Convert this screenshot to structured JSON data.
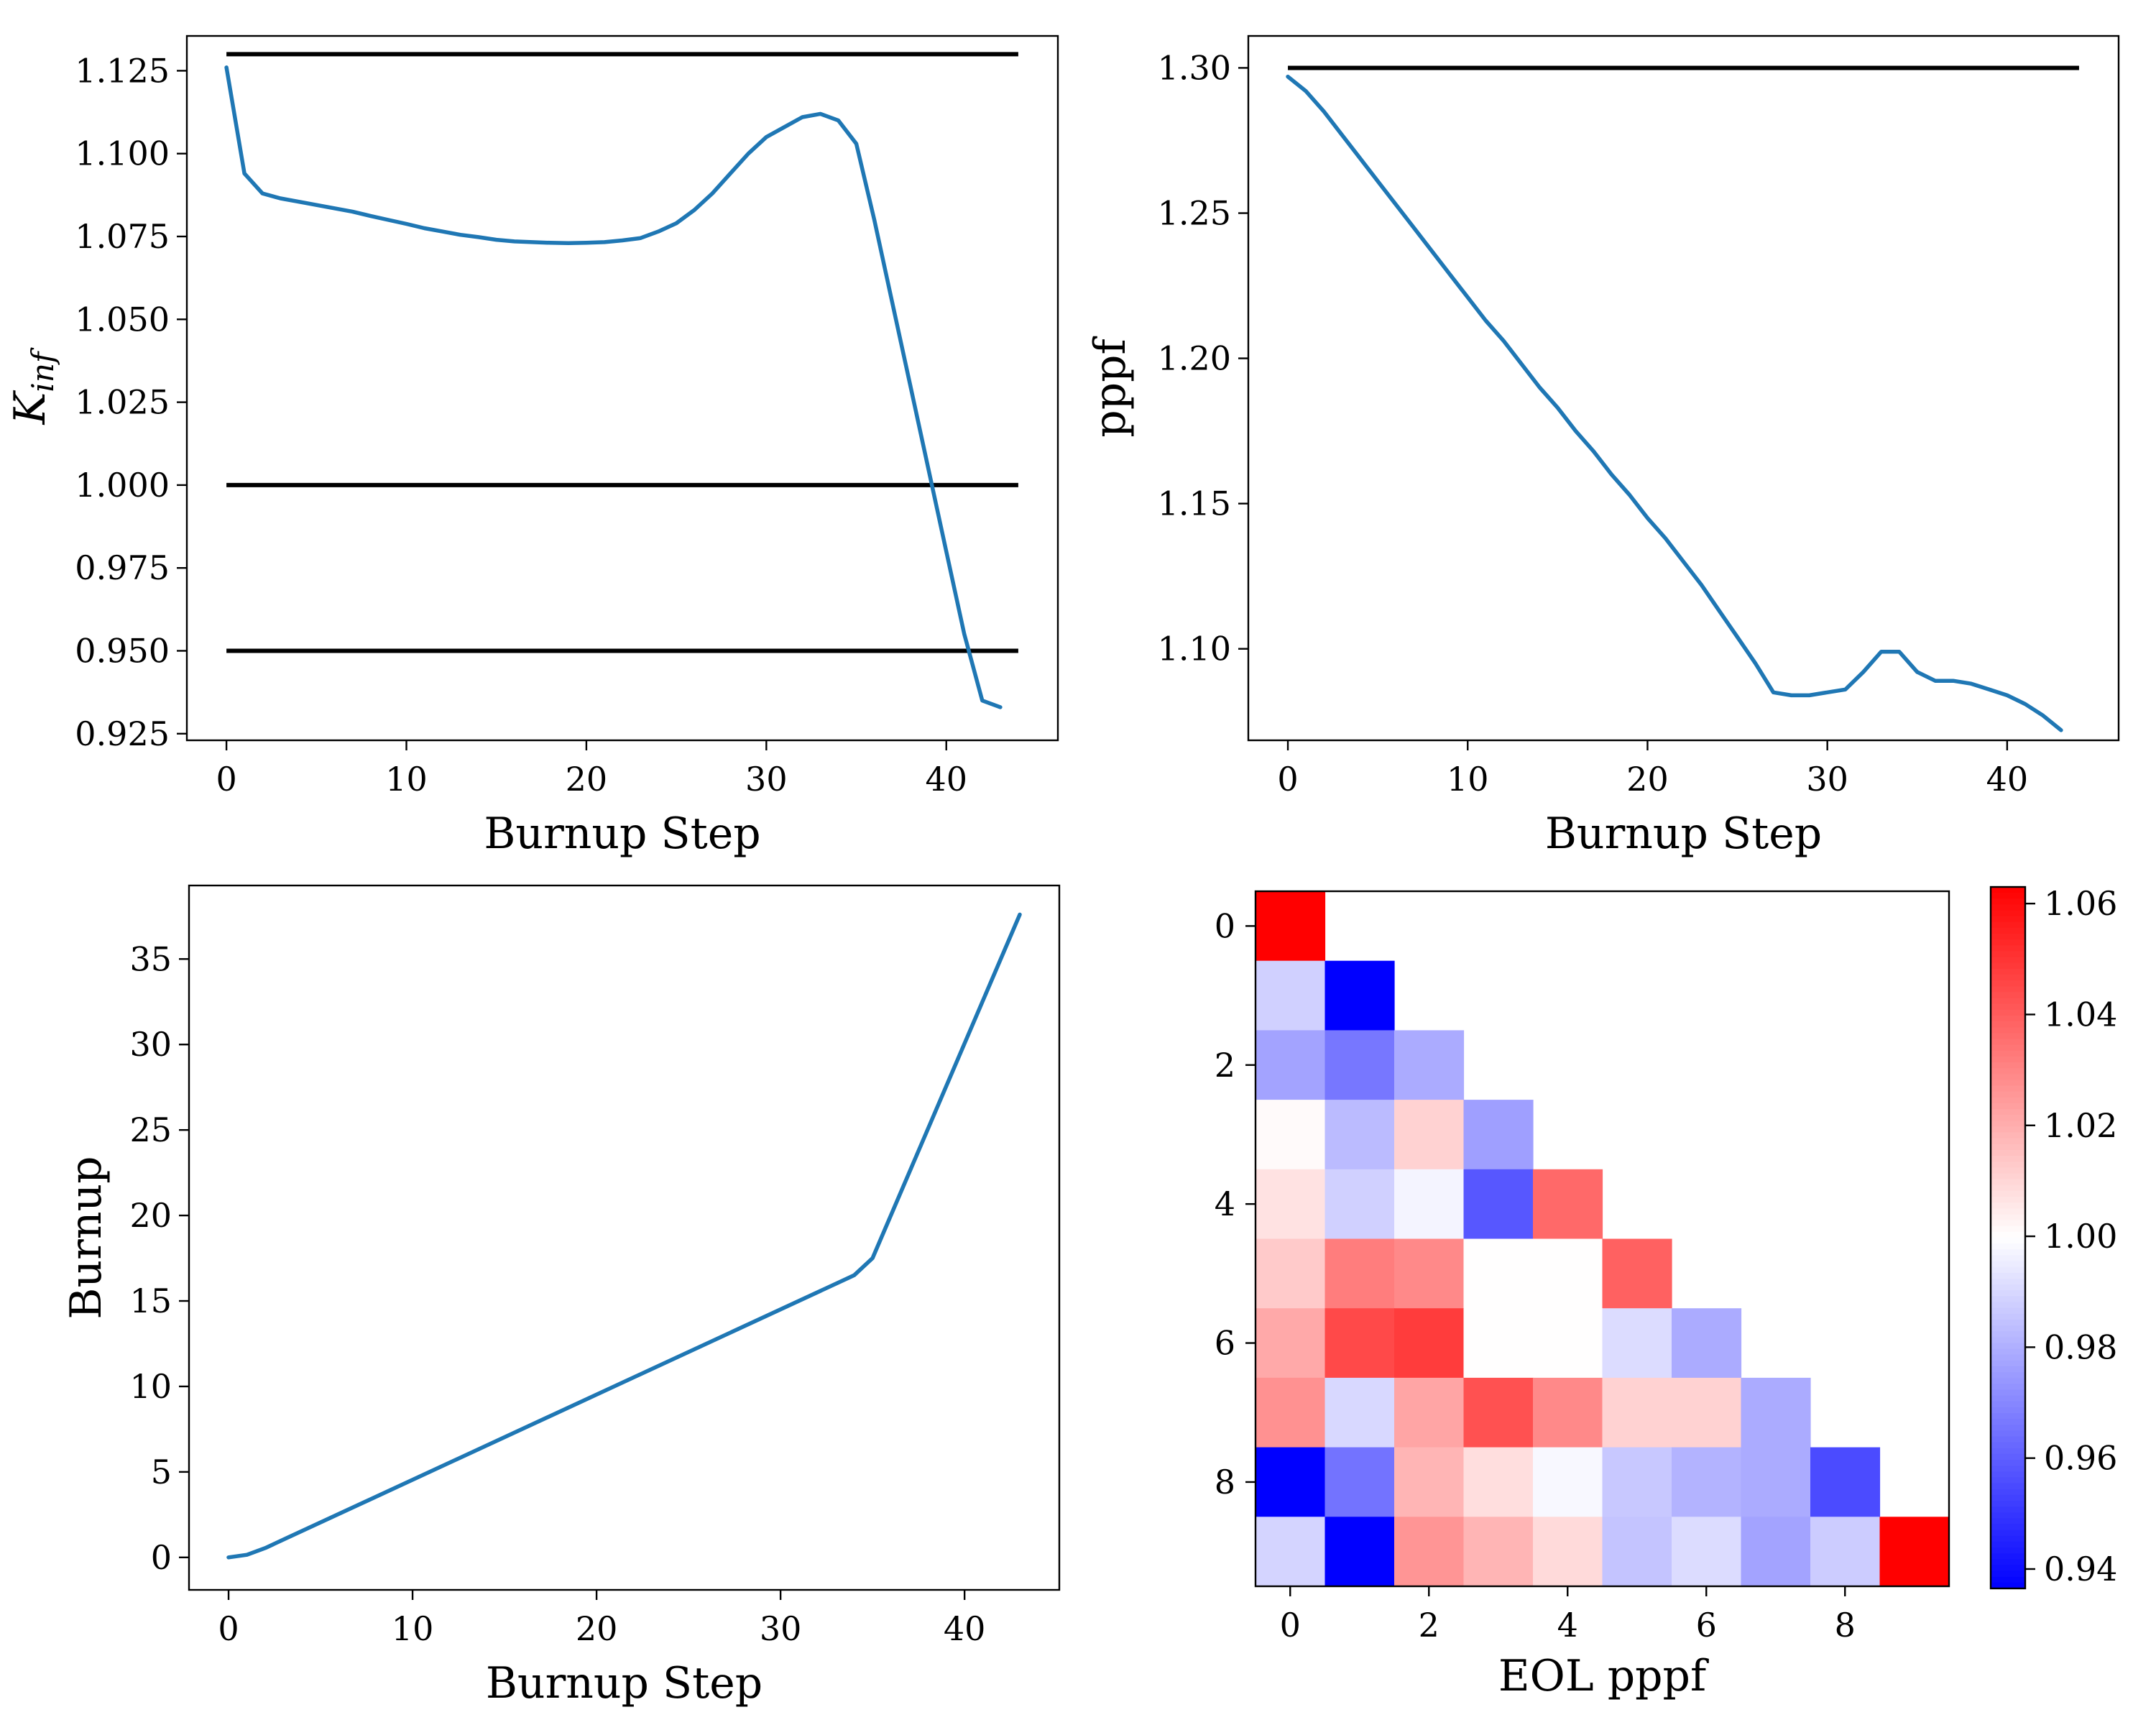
{
  "chart_data": [
    {
      "type": "line",
      "title": "",
      "xlabel": "Burnup Step",
      "ylabel_base": "K",
      "ylabel_sub": "inf",
      "xlim": [
        -2.2,
        46.2
      ],
      "ylim": [
        0.923,
        1.1355
      ],
      "xticks": [
        0,
        10,
        20,
        30,
        40
      ],
      "yticks": [
        0.925,
        0.95,
        0.975,
        1.0,
        1.025,
        1.05,
        1.075,
        1.1,
        1.125
      ],
      "ytick_labels": [
        "0.925",
        "0.950",
        "0.975",
        "1.000",
        "1.025",
        "1.050",
        "1.075",
        "1.100",
        "1.125"
      ],
      "hlines": [
        {
          "y": 1.13,
          "x": [
            0,
            44
          ]
        },
        {
          "y": 1.0,
          "x": [
            0,
            44
          ]
        },
        {
          "y": 0.95,
          "x": [
            0,
            44
          ]
        }
      ],
      "series": [
        {
          "color": "#1f77b4",
          "x": [
            0,
            1,
            2,
            3,
            4,
            5,
            6,
            7,
            8,
            9,
            10,
            11,
            12,
            13,
            14,
            15,
            16,
            17,
            18,
            19,
            20,
            21,
            22,
            23,
            24,
            25,
            26,
            27,
            28,
            29,
            30,
            31,
            32,
            33,
            34,
            35,
            36,
            37,
            38,
            39,
            40,
            41,
            42,
            43
          ],
          "y": [
            1.126,
            1.094,
            1.088,
            1.0865,
            1.0855,
            1.0845,
            1.0835,
            1.0825,
            1.0812,
            1.08,
            1.0788,
            1.0775,
            1.0765,
            1.0755,
            1.0748,
            1.074,
            1.0735,
            1.0733,
            1.0731,
            1.073,
            1.0731,
            1.0733,
            1.0738,
            1.0745,
            1.0765,
            1.079,
            1.083,
            1.088,
            1.094,
            1.1,
            1.105,
            1.108,
            1.111,
            1.112,
            1.11,
            1.103,
            1.08,
            1.055,
            1.03,
            1.005,
            0.98,
            0.955,
            0.935,
            0.933
          ]
        }
      ]
    },
    {
      "type": "line",
      "title": "",
      "xlabel": "Burnup Step",
      "ylabel": "pppf",
      "xlim": [
        -2.2,
        46.2
      ],
      "ylim": [
        1.0685,
        1.311
      ],
      "xticks": [
        0,
        10,
        20,
        30,
        40
      ],
      "yticks": [
        1.1,
        1.15,
        1.2,
        1.25,
        1.3
      ],
      "ytick_labels": [
        "1.10",
        "1.15",
        "1.20",
        "1.25",
        "1.30"
      ],
      "hlines": [
        {
          "y": 1.3,
          "x": [
            0,
            44
          ]
        }
      ],
      "series": [
        {
          "color": "#1f77b4",
          "x": [
            0,
            1,
            2,
            3,
            4,
            5,
            6,
            7,
            8,
            9,
            10,
            11,
            12,
            13,
            14,
            15,
            16,
            17,
            18,
            19,
            20,
            21,
            22,
            23,
            24,
            25,
            26,
            27,
            28,
            29,
            30,
            31,
            32,
            33,
            34,
            35,
            36,
            37,
            38,
            39,
            40,
            41,
            42,
            43
          ],
          "y": [
            1.297,
            1.292,
            1.285,
            1.277,
            1.269,
            1.261,
            1.253,
            1.245,
            1.237,
            1.229,
            1.221,
            1.213,
            1.206,
            1.198,
            1.19,
            1.183,
            1.175,
            1.168,
            1.16,
            1.153,
            1.145,
            1.138,
            1.13,
            1.122,
            1.113,
            1.104,
            1.095,
            1.085,
            1.084,
            1.084,
            1.085,
            1.086,
            1.092,
            1.099,
            1.099,
            1.092,
            1.089,
            1.089,
            1.088,
            1.086,
            1.084,
            1.081,
            1.077,
            1.072
          ]
        }
      ]
    },
    {
      "type": "line",
      "title": "",
      "xlabel": "Burnup Step",
      "ylabel": "Burnup",
      "xlim": [
        -2.15,
        45.15
      ],
      "ylim": [
        -1.9,
        39.3
      ],
      "xticks": [
        0,
        10,
        20,
        30,
        40
      ],
      "yticks": [
        0,
        5,
        10,
        15,
        20,
        25,
        30,
        35
      ],
      "ytick_labels": [
        "0",
        "5",
        "10",
        "15",
        "20",
        "25",
        "30",
        "35"
      ],
      "series": [
        {
          "color": "#1f77b4",
          "x": [
            0,
            1,
            2,
            3,
            34,
            35,
            43
          ],
          "y": [
            0,
            0.15,
            0.55,
            1.05,
            16.5,
            17.5,
            37.6
          ]
        }
      ]
    },
    {
      "type": "heatmap",
      "title": "",
      "xlabel": "EOL pppf",
      "ylabel": "",
      "rows": 10,
      "cols": 10,
      "xticks": [
        0,
        2,
        4,
        6,
        8
      ],
      "yticks": [
        0,
        2,
        4,
        6,
        8
      ],
      "colormap": "bwr",
      "vmin": 0.9365,
      "vmax": 1.063,
      "colorbar_ticks": [
        0.94,
        0.96,
        0.98,
        1.0,
        1.02,
        1.04,
        1.06
      ],
      "colorbar_tick_labels": [
        "0.94",
        "0.96",
        "0.98",
        "1.00",
        "1.02",
        "1.04",
        "1.06"
      ],
      "values": [
        [
          1.063,
          null,
          null,
          null,
          null,
          null,
          null,
          null,
          null,
          null
        ],
        [
          0.988,
          0.9365,
          null,
          null,
          null,
          null,
          null,
          null,
          null,
          null
        ],
        [
          0.977,
          0.966,
          0.979,
          null,
          null,
          null,
          null,
          null,
          null,
          null
        ],
        [
          1.001,
          0.983,
          1.011,
          0.976,
          null,
          null,
          null,
          null,
          null,
          null
        ],
        [
          1.007,
          0.988,
          0.997,
          0.958,
          1.037,
          null,
          null,
          null,
          null,
          null
        ],
        [
          1.013,
          1.032,
          1.029,
          1.0,
          1.0,
          1.039,
          null,
          null,
          null,
          null
        ],
        [
          1.021,
          1.045,
          1.048,
          1.0,
          1.0,
          0.991,
          0.979,
          null,
          null,
          null
        ],
        [
          1.027,
          0.99,
          1.022,
          1.043,
          1.029,
          1.011,
          1.011,
          0.979,
          null,
          null
        ],
        [
          0.9365,
          0.965,
          1.018,
          1.008,
          0.998,
          0.986,
          0.981,
          0.979,
          0.955,
          null
        ],
        [
          0.989,
          0.9365,
          1.026,
          1.018,
          1.009,
          0.985,
          0.991,
          0.977,
          0.987,
          1.063
        ]
      ]
    }
  ]
}
